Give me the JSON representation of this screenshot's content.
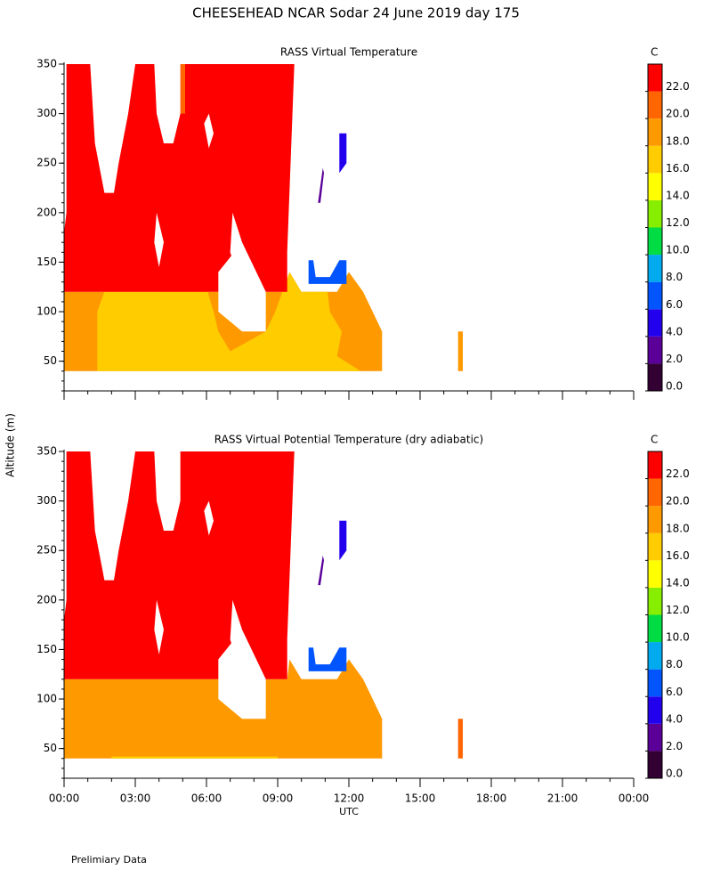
{
  "title": "CHEESEHEAD  NCAR Sodar  24 June 2019  day 175",
  "y_label": "Altitude (m)",
  "footnote": "Prelimiary Data",
  "chart_data": [
    {
      "type": "contour",
      "title": "RASS Virtual Temperature",
      "xlim": [
        0,
        24
      ],
      "xticks": [
        0,
        3,
        6,
        9,
        12,
        15,
        18,
        21,
        24
      ],
      "ylim": [
        20,
        350
      ],
      "yticks": [
        50,
        100,
        150,
        200,
        250,
        300,
        350
      ],
      "colorbar": {
        "label": "C",
        "levels": [
          0,
          2,
          4,
          6,
          8,
          10,
          12,
          14,
          16,
          18,
          20,
          22,
          24
        ],
        "colors": [
          "#330033",
          "#5a0099",
          "#2200ee",
          "#0055ff",
          "#00aaee",
          "#00dd44",
          "#88ee00",
          "#ffff00",
          "#ffcc00",
          "#ff9900",
          "#ff6600",
          "#ff0000"
        ],
        "ticks": [
          {
            "value": 0,
            "label": "0.0"
          },
          {
            "value": 2,
            "label": "2.0"
          },
          {
            "value": 4,
            "label": "4.0"
          },
          {
            "value": 6,
            "label": "6.0"
          },
          {
            "value": 8,
            "label": "8.0"
          },
          {
            "value": 10,
            "label": "10.0"
          },
          {
            "value": 12,
            "label": "12.0"
          },
          {
            "value": 14,
            "label": "14.0"
          },
          {
            "value": 16,
            "label": "16.0"
          },
          {
            "value": 18,
            "label": "18.0"
          },
          {
            "value": 20,
            "label": "20.0"
          },
          {
            "value": 22,
            "label": "22.0"
          }
        ]
      },
      "fields": [
        {
          "level": 18,
          "points": [
            [
              0,
              40
            ],
            [
              13.4,
              40
            ],
            [
              13.4,
              80
            ],
            [
              13,
              100
            ],
            [
              12.6,
              120
            ],
            [
              12,
              140
            ],
            [
              11.5,
              120
            ],
            [
              10,
              120
            ],
            [
              9.5,
              140
            ],
            [
              9.4,
              120
            ],
            [
              0,
              120
            ]
          ]
        },
        {
          "level": 16,
          "points": [
            [
              1.4,
              40
            ],
            [
              12.5,
              40
            ],
            [
              11.5,
              55
            ],
            [
              11.7,
              80
            ],
            [
              11.2,
              100
            ],
            [
              11.1,
              120
            ],
            [
              10,
              120
            ],
            [
              9.5,
              140
            ],
            [
              8.9,
              100
            ],
            [
              8.5,
              80
            ],
            [
              7,
              60
            ],
            [
              6.5,
              80
            ],
            [
              6.3,
              100
            ],
            [
              5.8,
              140
            ],
            [
              4,
              120
            ],
            [
              1.7,
              120
            ],
            [
              1.4,
              100
            ]
          ]
        },
        {
          "level": 22,
          "points": [
            [
              0,
              120
            ],
            [
              9.4,
              120
            ],
            [
              9.4,
              160
            ],
            [
              9.7,
              350
            ],
            [
              0,
              350
            ]
          ]
        },
        {
          "level": 20,
          "points": [
            [
              4.9,
              300
            ],
            [
              5.1,
              300
            ],
            [
              5.1,
              350
            ],
            [
              4.9,
              350
            ]
          ]
        },
        {
          "level": 4,
          "points": [
            [
              11.6,
              240
            ],
            [
              11.9,
              250
            ],
            [
              11.9,
              280
            ],
            [
              11.6,
              280
            ]
          ]
        },
        {
          "level": 2,
          "points": [
            [
              10.7,
              210
            ],
            [
              10.9,
              245
            ],
            [
              10.95,
              240
            ],
            [
              10.8,
              210
            ]
          ]
        },
        {
          "level": 6,
          "points": [
            [
              10.3,
              128
            ],
            [
              11.9,
              128
            ],
            [
              11.9,
              152
            ],
            [
              11.6,
              152
            ],
            [
              11.2,
              135
            ],
            [
              10.6,
              135
            ],
            [
              10.5,
              152
            ],
            [
              10.3,
              152
            ]
          ]
        },
        {
          "level": 18,
          "points": [
            [
              16.6,
              40
            ],
            [
              16.8,
              40
            ],
            [
              16.8,
              80
            ],
            [
              16.6,
              80
            ]
          ]
        }
      ]
    },
    {
      "type": "contour",
      "title": "RASS Virtual Potential Temperature (dry adiabatic)",
      "x_label": "UTC",
      "xlim": [
        0,
        24
      ],
      "xticks": [
        {
          "value": 0,
          "label": "00:00"
        },
        {
          "value": 3,
          "label": "03:00"
        },
        {
          "value": 6,
          "label": "06:00"
        },
        {
          "value": 9,
          "label": "09:00"
        },
        {
          "value": 12,
          "label": "12:00"
        },
        {
          "value": 15,
          "label": "15:00"
        },
        {
          "value": 18,
          "label": "18:00"
        },
        {
          "value": 21,
          "label": "21:00"
        },
        {
          "value": 24,
          "label": "00:00"
        }
      ],
      "ylim": [
        20,
        350
      ],
      "yticks": [
        50,
        100,
        150,
        200,
        250,
        300,
        350
      ],
      "colorbar": {
        "label": "C",
        "levels": [
          0,
          2,
          4,
          6,
          8,
          10,
          12,
          14,
          16,
          18,
          20,
          22,
          24
        ],
        "colors": [
          "#330033",
          "#5a0099",
          "#2200ee",
          "#0055ff",
          "#00aaee",
          "#00dd44",
          "#88ee00",
          "#ffff00",
          "#ffcc00",
          "#ff9900",
          "#ff6600",
          "#ff0000"
        ],
        "ticks": [
          {
            "value": 0,
            "label": "0.0"
          },
          {
            "value": 2,
            "label": "2.0"
          },
          {
            "value": 4,
            "label": "4.0"
          },
          {
            "value": 6,
            "label": "6.0"
          },
          {
            "value": 8,
            "label": "8.0"
          },
          {
            "value": 10,
            "label": "10.0"
          },
          {
            "value": 12,
            "label": "12.0"
          },
          {
            "value": 14,
            "label": "14.0"
          },
          {
            "value": 16,
            "label": "16.0"
          },
          {
            "value": 18,
            "label": "18.0"
          },
          {
            "value": 20,
            "label": "20.0"
          },
          {
            "value": 22,
            "label": "22.0"
          }
        ]
      },
      "fields": [
        {
          "level": 18,
          "points": [
            [
              0,
              40
            ],
            [
              13.4,
              40
            ],
            [
              13.4,
              80
            ],
            [
              13,
              100
            ],
            [
              12.6,
              120
            ],
            [
              12,
              140
            ],
            [
              11.5,
              120
            ],
            [
              10,
              120
            ],
            [
              9.5,
              140
            ],
            [
              9.4,
              120
            ],
            [
              0,
              120
            ]
          ]
        },
        {
          "level": 16,
          "points": [
            [
              2,
              40
            ],
            [
              9,
              40
            ],
            [
              9,
              42
            ],
            [
              2,
              42
            ]
          ]
        },
        {
          "level": 22,
          "points": [
            [
              0,
              120
            ],
            [
              9.4,
              120
            ],
            [
              9.4,
              160
            ],
            [
              9.7,
              350
            ],
            [
              0,
              350
            ]
          ]
        },
        {
          "level": 4,
          "points": [
            [
              11.6,
              240
            ],
            [
              11.9,
              250
            ],
            [
              11.9,
              280
            ],
            [
              11.6,
              280
            ]
          ]
        },
        {
          "level": 2,
          "points": [
            [
              10.7,
              215
            ],
            [
              10.9,
              245
            ],
            [
              10.95,
              240
            ],
            [
              10.8,
              215
            ]
          ]
        },
        {
          "level": 6,
          "points": [
            [
              10.3,
              128
            ],
            [
              11.9,
              128
            ],
            [
              11.9,
              152
            ],
            [
              11.6,
              152
            ],
            [
              11.2,
              135
            ],
            [
              10.6,
              135
            ],
            [
              10.5,
              152
            ],
            [
              10.3,
              152
            ]
          ]
        },
        {
          "level": 20,
          "points": [
            [
              16.6,
              40
            ],
            [
              16.8,
              40
            ],
            [
              16.8,
              80
            ],
            [
              16.6,
              80
            ]
          ]
        }
      ]
    }
  ]
}
